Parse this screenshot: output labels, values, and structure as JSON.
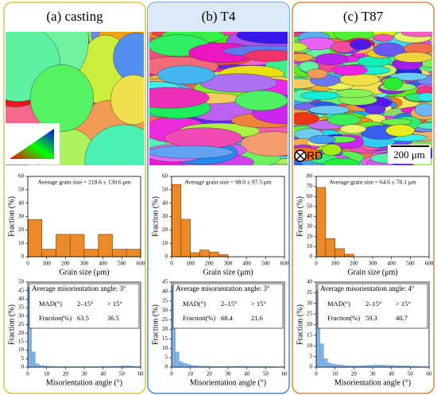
{
  "panels": [
    {
      "title": "(a) casting"
    },
    {
      "title": "(b) T4"
    },
    {
      "title": "(c) T87",
      "scale_bar": "200 μm",
      "direction": "RD"
    }
  ],
  "chart_data": [
    {
      "type": "histogram",
      "annotation": "Average grain size = 218.6 ± 130.6 μm",
      "xlabel": "Grain size (μm)",
      "ylabel": "Fraction (%)",
      "color": "#ec8a2a",
      "bins": [
        0,
        75,
        150,
        225,
        300,
        375,
        450,
        525,
        600
      ],
      "values": [
        27.8,
        5.6,
        16.7,
        16.7,
        5.6,
        16.7,
        5.6,
        5.6
      ],
      "xlim": [
        0,
        600
      ],
      "xticks": [
        0,
        100,
        200,
        300,
        400,
        500,
        600
      ],
      "ylim": [
        0,
        60
      ],
      "yticks": [
        0,
        10,
        20,
        30,
        40,
        50,
        60
      ]
    },
    {
      "type": "histogram",
      "annotation": "Average misorientation angle: 3°",
      "table": [
        [
          "MAD(°)",
          "2–15°",
          "> 15°"
        ],
        [
          "Fraction(%)",
          63.5,
          36.5
        ]
      ],
      "xlabel": "Misorientation angle (°)",
      "ylabel": "Fraction (%)",
      "color": "#7fb2e5",
      "bins": [
        0,
        2,
        4,
        6,
        8,
        10,
        12,
        14,
        16,
        18,
        20,
        22,
        24,
        26,
        28,
        30,
        32,
        34,
        36,
        38,
        40,
        42,
        44,
        46,
        48,
        50,
        52,
        54,
        56,
        58,
        60
      ],
      "values": [
        47,
        9,
        2,
        1,
        0.8,
        0.6,
        0.5,
        0.4,
        0.4,
        0.3,
        0.3,
        0.3,
        0.3,
        0.4,
        0.3,
        0.3,
        0.3,
        0.4,
        0.4,
        0.5,
        0.5,
        0.4,
        0.5,
        0.6,
        0.6,
        0.8,
        0.8,
        0.7,
        0.5,
        0.3
      ],
      "xlim": [
        0,
        60
      ],
      "xticks": [
        0,
        10,
        20,
        30,
        40,
        50,
        60
      ],
      "ylim": [
        0,
        50
      ],
      "yticks": [
        0,
        5,
        10,
        15,
        20,
        25,
        30,
        35,
        40,
        45,
        50
      ]
    },
    {
      "type": "histogram",
      "annotation": "Average grain size = 98.0 ± 97.5 μm",
      "xlabel": "Grain size (μm)",
      "ylabel": "Fraction (%)",
      "color": "#ec8a2a",
      "bins": [
        0,
        50,
        100,
        150,
        200,
        250,
        300
      ],
      "values": [
        54,
        28,
        3,
        5,
        3.5,
        1.5
      ],
      "xlim": [
        0,
        600
      ],
      "xticks": [
        0,
        100,
        200,
        300,
        400,
        500,
        600
      ],
      "ylim": [
        0,
        60
      ],
      "yticks": [
        0,
        10,
        20,
        30,
        40,
        50,
        60
      ]
    },
    {
      "type": "histogram",
      "annotation": "Average misorientation angle: 3°",
      "table": [
        [
          "MAD(°)",
          "2–15°",
          "> 15°"
        ],
        [
          "Fraction(%)",
          68.4,
          21.6
        ]
      ],
      "xlabel": "Misorientation angle (°)",
      "ylabel": "Fraction (%)",
      "color": "#7fb2e5",
      "bins": [
        0,
        2,
        4,
        6,
        8,
        10,
        12,
        14,
        16,
        18,
        20,
        22,
        24,
        26,
        28,
        30,
        32,
        34,
        36,
        38,
        40,
        42,
        44,
        46,
        48,
        50,
        52,
        54,
        56,
        58,
        60
      ],
      "values": [
        43,
        8,
        3,
        2,
        1.5,
        1,
        0.8,
        0.6,
        0.5,
        0.5,
        0.4,
        0.4,
        0.4,
        0.4,
        0.4,
        0.4,
        0.4,
        0.5,
        0.5,
        0.5,
        0.4,
        0.4,
        0.4,
        0.4,
        0.4,
        0.4,
        0.3,
        0.3,
        0.2,
        0.2
      ],
      "xlim": [
        0,
        60
      ],
      "xticks": [
        0,
        10,
        20,
        30,
        40,
        50,
        60
      ],
      "ylim": [
        0,
        45
      ],
      "yticks": [
        0,
        5,
        10,
        15,
        20,
        25,
        30,
        35,
        40,
        45
      ]
    },
    {
      "type": "histogram",
      "annotation": "Average grain size = 64.6 ± 70.1 μm",
      "xlabel": "Grain size (μm)",
      "ylabel": "Fraction (%)",
      "color": "#ec8a2a",
      "bins": [
        0,
        50,
        100,
        150,
        200
      ],
      "values": [
        69,
        18,
        8,
        2.5
      ],
      "xlim": [
        0,
        600
      ],
      "xticks": [
        0,
        100,
        200,
        300,
        400,
        500,
        600
      ],
      "ylim": [
        0,
        80
      ],
      "yticks": [
        0,
        10,
        20,
        30,
        40,
        50,
        60,
        70,
        80
      ]
    },
    {
      "type": "histogram",
      "annotation": "Average misorientation angle: 4°",
      "table": [
        [
          "MAD(°)",
          "2–15°",
          "> 15°"
        ],
        [
          "Fraction(%)",
          59.3,
          40.7
        ]
      ],
      "xlabel": "Misorientation angle (°)",
      "ylabel": "Fraction (%)",
      "color": "#7fb2e5",
      "bins": [
        0,
        2,
        4,
        6,
        8,
        10,
        12,
        14,
        16,
        18,
        20,
        22,
        24,
        26,
        28,
        30,
        32,
        34,
        36,
        38,
        40,
        42,
        44,
        46,
        48,
        50,
        52,
        54,
        56,
        58,
        60
      ],
      "values": [
        36,
        11,
        4,
        2,
        1.5,
        1.2,
        1,
        0.8,
        0.7,
        0.6,
        0.6,
        0.6,
        0.7,
        0.8,
        0.9,
        1,
        1,
        1,
        0.9,
        0.8,
        0.8,
        0.7,
        0.7,
        0.6,
        0.6,
        0.5,
        0.5,
        0.4,
        0.3,
        0.2
      ],
      "xlim": [
        0,
        60
      ],
      "xticks": [
        0,
        10,
        20,
        30,
        40,
        50,
        60
      ],
      "ylim": [
        0,
        40
      ],
      "yticks": [
        0,
        5,
        10,
        15,
        20,
        25,
        30,
        35,
        40
      ]
    }
  ]
}
